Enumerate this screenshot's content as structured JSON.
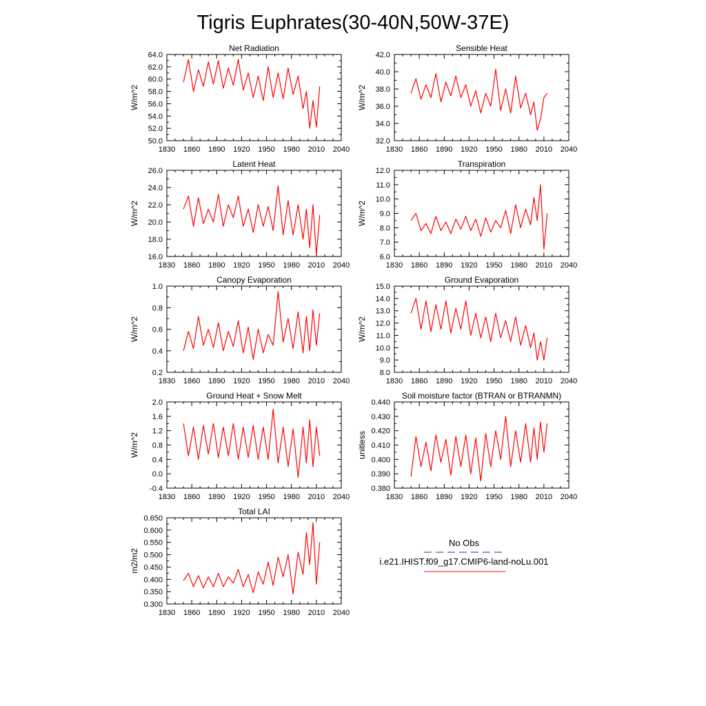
{
  "figure": {
    "title": "Tigris Euphrates(30-40N,50W-37E)"
  },
  "legend": {
    "items": [
      {
        "label": "No Obs",
        "color": "#2a2a8a",
        "dash": "dashed"
      },
      {
        "label": "i.e21.IHIST.f09_g17.CMIP6-land-noLu.001",
        "color": "#ff0000",
        "dash": "solid"
      }
    ]
  },
  "chart_data": [
    {
      "type": "line",
      "title": "Net Radiation",
      "ylabel": "W/m^2",
      "xlim": [
        1830,
        2040
      ],
      "ylim": [
        50,
        64
      ],
      "xticks": [
        1830,
        1860,
        1890,
        1920,
        1950,
        1980,
        2010,
        2040
      ],
      "yticks": [
        "50.0",
        "52.0",
        "54.0",
        "56.0",
        "58.0",
        "60.0",
        "62.0",
        "64.0"
      ],
      "series": [
        {
          "color": "#ff0000",
          "x": [
            1850,
            1856,
            1862,
            1868,
            1874,
            1880,
            1886,
            1892,
            1898,
            1904,
            1910,
            1916,
            1922,
            1928,
            1934,
            1940,
            1946,
            1952,
            1958,
            1964,
            1970,
            1976,
            1982,
            1988,
            1994,
            1998,
            2002,
            2006,
            2010,
            2014
          ],
          "values": [
            59.5,
            63.2,
            58.0,
            61.5,
            58.8,
            62.8,
            59.2,
            63.0,
            58.5,
            61.8,
            59.0,
            63.2,
            58.2,
            61.0,
            57.0,
            60.5,
            56.5,
            62.0,
            57.0,
            61.0,
            56.8,
            61.8,
            57.5,
            60.5,
            55.2,
            58.0,
            52.0,
            56.5,
            52.2,
            58.8
          ]
        }
      ]
    },
    {
      "type": "line",
      "title": "Sensible Heat",
      "ylabel": "W/m^2",
      "xlim": [
        1830,
        2040
      ],
      "ylim": [
        32,
        42
      ],
      "xticks": [
        1830,
        1860,
        1890,
        1920,
        1950,
        1980,
        2010,
        2040
      ],
      "yticks": [
        "32.0",
        "34.0",
        "36.0",
        "38.0",
        "40.0",
        "42.0"
      ],
      "series": [
        {
          "color": "#ff0000",
          "x": [
            1850,
            1856,
            1862,
            1868,
            1874,
            1880,
            1886,
            1892,
            1898,
            1904,
            1910,
            1916,
            1922,
            1928,
            1934,
            1940,
            1946,
            1952,
            1958,
            1964,
            1970,
            1976,
            1982,
            1988,
            1994,
            1998,
            2002,
            2006,
            2010,
            2014
          ],
          "values": [
            37.5,
            39.2,
            36.8,
            38.5,
            37.0,
            39.8,
            36.5,
            38.8,
            37.2,
            39.5,
            37.0,
            38.5,
            36.0,
            37.8,
            35.2,
            37.5,
            36.0,
            40.3,
            35.5,
            38.0,
            35.2,
            39.5,
            35.8,
            37.5,
            35.0,
            36.5,
            33.2,
            34.5,
            37.0,
            37.5
          ]
        }
      ]
    },
    {
      "type": "line",
      "title": "Latent Heat",
      "ylabel": "W/m^2",
      "xlim": [
        1830,
        2040
      ],
      "ylim": [
        16,
        26
      ],
      "xticks": [
        1830,
        1860,
        1890,
        1920,
        1950,
        1980,
        2010,
        2040
      ],
      "yticks": [
        "16.0",
        "18.0",
        "20.0",
        "22.0",
        "24.0",
        "26.0"
      ],
      "series": [
        {
          "color": "#ff0000",
          "x": [
            1850,
            1856,
            1862,
            1868,
            1874,
            1880,
            1886,
            1892,
            1898,
            1904,
            1910,
            1916,
            1922,
            1928,
            1934,
            1940,
            1946,
            1952,
            1958,
            1964,
            1970,
            1976,
            1982,
            1988,
            1994,
            1998,
            2002,
            2006,
            2010,
            2014
          ],
          "values": [
            21.5,
            23.0,
            19.5,
            22.8,
            19.8,
            21.5,
            20.0,
            23.2,
            19.5,
            22.0,
            20.5,
            23.0,
            19.5,
            21.5,
            18.8,
            22.0,
            19.5,
            21.8,
            19.0,
            24.2,
            18.5,
            22.5,
            18.5,
            22.0,
            18.0,
            21.5,
            17.0,
            22.0,
            16.2,
            20.8
          ]
        }
      ]
    },
    {
      "type": "line",
      "title": "Transpiration",
      "ylabel": "W/m^2",
      "xlim": [
        1830,
        2040
      ],
      "ylim": [
        6,
        12
      ],
      "xticks": [
        1830,
        1860,
        1890,
        1920,
        1950,
        1980,
        2010,
        2040
      ],
      "yticks": [
        "6.0",
        "7.0",
        "8.0",
        "9.0",
        "10.0",
        "11.0",
        "12.0"
      ],
      "series": [
        {
          "color": "#ff0000",
          "x": [
            1850,
            1856,
            1862,
            1868,
            1874,
            1880,
            1886,
            1892,
            1898,
            1904,
            1910,
            1916,
            1922,
            1928,
            1934,
            1940,
            1946,
            1952,
            1958,
            1964,
            1970,
            1976,
            1982,
            1988,
            1994,
            1998,
            2002,
            2006,
            2010,
            2014
          ],
          "values": [
            8.5,
            9.0,
            7.8,
            8.3,
            7.6,
            8.8,
            7.8,
            8.4,
            7.6,
            8.6,
            7.9,
            8.8,
            7.8,
            8.6,
            7.4,
            8.7,
            7.7,
            8.5,
            8.0,
            9.2,
            7.6,
            9.6,
            8.0,
            9.3,
            8.2,
            10.1,
            8.5,
            11.0,
            6.5,
            9.0
          ]
        }
      ]
    },
    {
      "type": "line",
      "title": "Canopy Evaporation",
      "ylabel": "W/m^2",
      "xlim": [
        1830,
        2040
      ],
      "ylim": [
        0.2,
        1.0
      ],
      "xticks": [
        1830,
        1860,
        1890,
        1920,
        1950,
        1980,
        2010,
        2040
      ],
      "yticks": [
        "0.2",
        "0.4",
        "0.6",
        "0.8",
        "1.0"
      ],
      "series": [
        {
          "color": "#ff0000",
          "x": [
            1850,
            1856,
            1862,
            1868,
            1874,
            1880,
            1886,
            1892,
            1898,
            1904,
            1910,
            1916,
            1922,
            1928,
            1934,
            1940,
            1946,
            1952,
            1958,
            1964,
            1970,
            1976,
            1982,
            1988,
            1994,
            1998,
            2002,
            2006,
            2010,
            2014
          ],
          "values": [
            0.4,
            0.58,
            0.42,
            0.72,
            0.45,
            0.6,
            0.43,
            0.66,
            0.4,
            0.58,
            0.44,
            0.68,
            0.38,
            0.62,
            0.32,
            0.6,
            0.38,
            0.55,
            0.45,
            0.95,
            0.48,
            0.7,
            0.42,
            0.76,
            0.38,
            0.72,
            0.4,
            0.78,
            0.45,
            0.75
          ]
        }
      ]
    },
    {
      "type": "line",
      "title": "Ground Evaporation",
      "ylabel": "W/m^2",
      "xlim": [
        1830,
        2040
      ],
      "ylim": [
        8,
        15
      ],
      "xticks": [
        1830,
        1860,
        1890,
        1920,
        1950,
        1980,
        2010,
        2040
      ],
      "yticks": [
        "8.0",
        "9.0",
        "10.0",
        "11.0",
        "12.0",
        "13.0",
        "14.0",
        "15.0"
      ],
      "series": [
        {
          "color": "#ff0000",
          "x": [
            1850,
            1856,
            1862,
            1868,
            1874,
            1880,
            1886,
            1892,
            1898,
            1904,
            1910,
            1916,
            1922,
            1928,
            1934,
            1940,
            1946,
            1952,
            1958,
            1964,
            1970,
            1976,
            1982,
            1988,
            1994,
            1998,
            2002,
            2006,
            2010,
            2014
          ],
          "values": [
            12.8,
            14.0,
            11.5,
            13.8,
            11.3,
            13.5,
            11.5,
            13.8,
            11.2,
            13.2,
            11.5,
            13.8,
            11.0,
            12.8,
            10.8,
            12.5,
            10.5,
            12.8,
            10.8,
            12.2,
            10.5,
            12.5,
            10.2,
            11.8,
            10.0,
            11.2,
            9.0,
            10.5,
            9.0,
            10.8
          ]
        }
      ]
    },
    {
      "type": "line",
      "title": "Ground Heat + Snow Melt",
      "ylabel": "W/m^2",
      "xlim": [
        1830,
        2040
      ],
      "ylim": [
        -0.4,
        2.0
      ],
      "xticks": [
        1830,
        1860,
        1890,
        1920,
        1950,
        1980,
        2010,
        2040
      ],
      "yticks": [
        "-0.4",
        "0.0",
        "0.4",
        "0.8",
        "1.2",
        "1.6",
        "2.0"
      ],
      "series": [
        {
          "color": "#ff0000",
          "x": [
            1850,
            1856,
            1862,
            1868,
            1874,
            1880,
            1886,
            1892,
            1898,
            1904,
            1910,
            1916,
            1922,
            1928,
            1934,
            1940,
            1946,
            1952,
            1958,
            1964,
            1970,
            1976,
            1982,
            1988,
            1994,
            1998,
            2002,
            2006,
            2010,
            2014
          ],
          "values": [
            1.4,
            0.5,
            1.3,
            0.4,
            1.35,
            0.55,
            1.4,
            0.45,
            1.3,
            0.5,
            1.4,
            0.4,
            1.3,
            0.45,
            1.35,
            0.4,
            1.3,
            0.4,
            1.8,
            0.3,
            1.3,
            0.2,
            1.25,
            -0.1,
            1.3,
            0.3,
            1.5,
            0.2,
            1.3,
            0.5
          ]
        }
      ]
    },
    {
      "type": "line",
      "title": "Soil moisture factor (BTRAN or BTRANMN)",
      "ylabel": "unitless",
      "xlim": [
        1830,
        2040
      ],
      "ylim": [
        0.38,
        0.44
      ],
      "xticks": [
        1830,
        1860,
        1890,
        1920,
        1950,
        1980,
        2010,
        2040
      ],
      "yticks": [
        "0.380",
        "0.390",
        "0.400",
        "0.410",
        "0.420",
        "0.430",
        "0.440"
      ],
      "series": [
        {
          "color": "#ff0000",
          "x": [
            1850,
            1856,
            1862,
            1868,
            1874,
            1880,
            1886,
            1892,
            1898,
            1904,
            1910,
            1916,
            1922,
            1928,
            1934,
            1940,
            1946,
            1952,
            1958,
            1964,
            1970,
            1976,
            1982,
            1988,
            1994,
            1998,
            2002,
            2006,
            2010,
            2014
          ],
          "values": [
            0.388,
            0.416,
            0.395,
            0.412,
            0.392,
            0.417,
            0.398,
            0.414,
            0.389,
            0.416,
            0.395,
            0.417,
            0.39,
            0.415,
            0.385,
            0.418,
            0.395,
            0.42,
            0.4,
            0.43,
            0.395,
            0.42,
            0.398,
            0.425,
            0.398,
            0.422,
            0.4,
            0.426,
            0.405,
            0.425
          ]
        }
      ]
    },
    {
      "type": "line",
      "title": "Total LAI",
      "ylabel": "m2/m2",
      "xlim": [
        1830,
        2040
      ],
      "ylim": [
        0.3,
        0.65
      ],
      "xticks": [
        1830,
        1860,
        1890,
        1920,
        1950,
        1980,
        2010,
        2040
      ],
      "yticks": [
        "0.300",
        "0.350",
        "0.400",
        "0.450",
        "0.500",
        "0.550",
        "0.600",
        "0.650"
      ],
      "series": [
        {
          "color": "#ff0000",
          "x": [
            1850,
            1856,
            1862,
            1868,
            1874,
            1880,
            1886,
            1892,
            1898,
            1904,
            1910,
            1916,
            1922,
            1928,
            1934,
            1940,
            1946,
            1952,
            1958,
            1964,
            1970,
            1976,
            1982,
            1988,
            1994,
            1998,
            2002,
            2006,
            2010,
            2014
          ],
          "values": [
            0.395,
            0.425,
            0.37,
            0.415,
            0.365,
            0.41,
            0.37,
            0.425,
            0.37,
            0.41,
            0.385,
            0.44,
            0.37,
            0.42,
            0.345,
            0.43,
            0.38,
            0.47,
            0.375,
            0.49,
            0.41,
            0.5,
            0.34,
            0.51,
            0.42,
            0.59,
            0.46,
            0.63,
            0.38,
            0.55
          ]
        }
      ]
    }
  ]
}
